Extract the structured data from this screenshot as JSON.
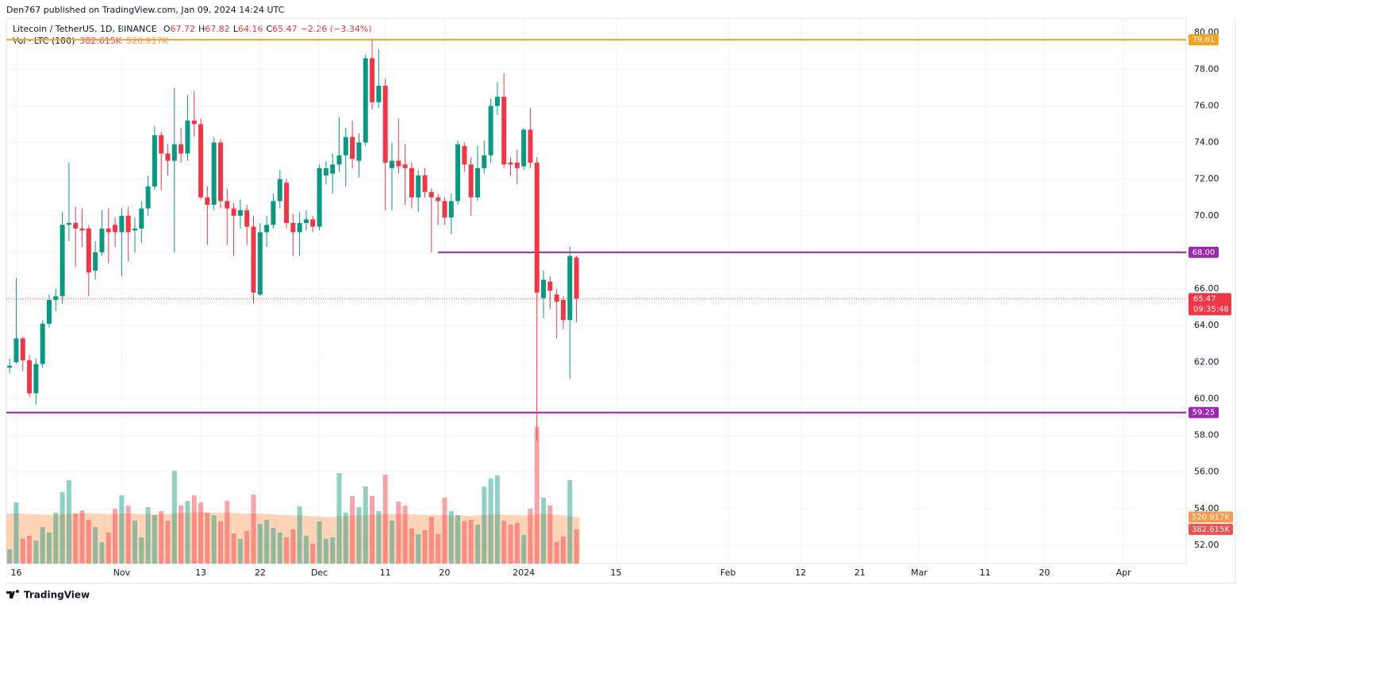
{
  "header": {
    "publisher": "Den767 published on TradingView.com, Jan 09, 2024 14:24 UTC"
  },
  "chart_data": {
    "type": "candlestick",
    "title": "Litecoin / TetherUS, 1D, BINANCE",
    "legend": {
      "o_label": "O",
      "open": 67.72,
      "h_label": "H",
      "high": 67.82,
      "l_label": "L",
      "low": 64.16,
      "c_label": "C",
      "close": 65.47,
      "change": "−2.26 (−3.34%)"
    },
    "x": [
      -1,
      0,
      1,
      2,
      3,
      4,
      5,
      6,
      7,
      8,
      9,
      10,
      11,
      12,
      13,
      14,
      15,
      16,
      17,
      18,
      19,
      20,
      21,
      22,
      23,
      24,
      25,
      26,
      27,
      28,
      29,
      30,
      31,
      32,
      33,
      34,
      35,
      36,
      37,
      38,
      39,
      40,
      41,
      42,
      43,
      44,
      45,
      46,
      47,
      48,
      49,
      50,
      51,
      52,
      53,
      54,
      55,
      56,
      57,
      58,
      59,
      60,
      61,
      62,
      63,
      64,
      65,
      66,
      67,
      68,
      69,
      70,
      71,
      72,
      73,
      74,
      75,
      76,
      77,
      78,
      79,
      80,
      81,
      82,
      83,
      84,
      85
    ],
    "open": [
      61.7,
      62.0,
      63.3,
      62.1,
      60.3,
      61.9,
      64.1,
      65.4,
      65.6,
      69.5,
      69.6,
      69.3,
      69.3,
      67.0,
      68.0,
      69.3,
      69.5,
      69.1,
      70.0,
      69.2,
      69.3,
      70.4,
      71.6,
      74.4,
      73.4,
      73.0,
      73.9,
      73.4,
      75.2,
      75.0,
      71.0,
      70.6,
      74.0,
      70.8,
      70.4,
      70.0,
      70.3,
      69.4,
      65.7,
      69.1,
      69.5,
      70.8,
      71.8,
      69.6,
      69.1,
      69.6,
      69.8,
      69.4,
      72.2,
      72.3,
      72.8,
      73.3,
      74.3,
      73.0,
      74.0,
      78.6,
      76.2,
      77.1,
      72.6,
      73.0,
      72.8,
      72.6,
      71.0,
      72.2,
      71.3,
      71.0,
      70.8,
      69.9,
      70.8,
      73.8,
      72.8,
      71.0,
      72.6,
      73.3,
      76.0,
      76.5,
      72.9,
      72.9,
      72.7,
      74.7,
      72.9,
      65.5,
      66.4,
      65.7,
      65.4,
      64.3,
      67.72
    ],
    "high": [
      62.2,
      66.6,
      63.4,
      62.4,
      62.2,
      64.3,
      65.7,
      66.0,
      70.2,
      72.9,
      70.5,
      70.4,
      69.5,
      68.6,
      70.3,
      70.4,
      69.9,
      70.4,
      70.5,
      69.9,
      70.8,
      72.2,
      74.9,
      74.6,
      73.9,
      77.0,
      74.8,
      76.6,
      76.8,
      75.3,
      71.6,
      74.3,
      74.2,
      71.5,
      70.7,
      70.9,
      70.6,
      70.0,
      69.6,
      70.0,
      71.2,
      72.5,
      72.0,
      70.1,
      70.2,
      70.3,
      70.0,
      72.8,
      73.0,
      73.4,
      75.4,
      74.8,
      75.2,
      74.5,
      78.8,
      79.6,
      79.1,
      77.5,
      74.0,
      75.3,
      73.9,
      72.9,
      72.5,
      72.6,
      71.5,
      71.2,
      71.0,
      71.2,
      74.1,
      74.0,
      73.2,
      73.8,
      74.1,
      76.4,
      77.3,
      77.8,
      73.2,
      73.6,
      74.8,
      75.9,
      73.2,
      67.0,
      66.7,
      66.0,
      65.6,
      68.3,
      67.82
    ],
    "low": [
      61.4,
      61.9,
      61.5,
      60.1,
      59.7,
      61.7,
      63.9,
      64.8,
      65.2,
      68.6,
      67.2,
      68.3,
      65.6,
      66.5,
      67.8,
      67.4,
      68.3,
      66.7,
      67.5,
      68.0,
      68.5,
      70.0,
      71.4,
      71.4,
      72.2,
      68.0,
      72.9,
      73.0,
      74.3,
      70.9,
      68.4,
      70.3,
      70.4,
      68.4,
      67.8,
      69.3,
      68.4,
      65.2,
      65.6,
      68.3,
      69.3,
      70.4,
      69.3,
      67.8,
      67.8,
      69.2,
      69.1,
      69.2,
      71.7,
      71.2,
      72.4,
      71.6,
      72.6,
      72.1,
      73.8,
      75.8,
      75.9,
      70.3,
      70.3,
      72.3,
      70.6,
      70.4,
      70.2,
      71.0,
      68.0,
      69.5,
      69.5,
      69.0,
      70.6,
      72.4,
      70.0,
      70.8,
      72.3,
      72.9,
      75.5,
      72.6,
      72.2,
      71.7,
      72.5,
      72.6,
      57.7,
      64.4,
      64.9,
      63.3,
      63.8,
      61.1,
      64.16
    ],
    "close": [
      61.8,
      63.3,
      62.1,
      60.3,
      61.9,
      64.1,
      65.4,
      65.6,
      69.5,
      69.6,
      69.3,
      69.2,
      66.9,
      68.0,
      69.3,
      69.1,
      69.1,
      70.0,
      69.1,
      69.3,
      70.4,
      71.6,
      74.4,
      73.4,
      73.0,
      73.9,
      73.4,
      75.2,
      75.0,
      71.0,
      70.6,
      74.0,
      70.8,
      70.4,
      70.0,
      70.3,
      69.4,
      65.8,
      69.1,
      69.5,
      70.8,
      72.0,
      69.6,
      69.1,
      69.6,
      69.8,
      69.4,
      72.6,
      72.6,
      72.8,
      73.3,
      74.3,
      73.1,
      74.0,
      78.6,
      76.2,
      77.1,
      72.9,
      73.0,
      72.7,
      72.6,
      71.0,
      72.2,
      71.3,
      71.0,
      70.8,
      69.9,
      70.8,
      73.9,
      72.8,
      71.0,
      72.6,
      73.3,
      76.0,
      76.5,
      72.8,
      72.8,
      72.6,
      74.7,
      72.9,
      65.8,
      66.5,
      65.9,
      65.3,
      64.3,
      67.8,
      65.47
    ],
    "up_color": "#089981",
    "down_color": "#f23645",
    "xlim": [
      -1.5,
      177.5
    ],
    "xticks": [
      {
        "value": 0,
        "label": "16"
      },
      {
        "value": 16,
        "label": "Nov"
      },
      {
        "value": 28,
        "label": "13"
      },
      {
        "value": 37,
        "label": "22"
      },
      {
        "value": 46,
        "label": "Dec"
      },
      {
        "value": 56,
        "label": "11"
      },
      {
        "value": 65,
        "label": "20"
      },
      {
        "value": 77,
        "label": "2024"
      },
      {
        "value": 91,
        "label": "15"
      },
      {
        "value": 108,
        "label": "Feb"
      },
      {
        "value": 119,
        "label": "12"
      },
      {
        "value": 128,
        "label": "21"
      },
      {
        "value": 137,
        "label": "Mar"
      },
      {
        "value": 147,
        "label": "11"
      },
      {
        "value": 156,
        "label": "20"
      },
      {
        "value": 168,
        "label": "Apr"
      }
    ],
    "ylim": [
      51.0,
      80.7
    ],
    "yticks": [
      {
        "value": 52,
        "label": "52.00"
      },
      {
        "value": 54,
        "label": "54.00"
      },
      {
        "value": 56,
        "label": "56.00"
      },
      {
        "value": 58,
        "label": "58.00"
      },
      {
        "value": 60,
        "label": "60.00"
      },
      {
        "value": 62,
        "label": "62.00"
      },
      {
        "value": 64,
        "label": "64.00"
      },
      {
        "value": 66,
        "label": "66.00"
      },
      {
        "value": 68,
        "label": "68.00"
      },
      {
        "value": 70,
        "label": "70.00"
      },
      {
        "value": 72,
        "label": "72.00"
      },
      {
        "value": 74,
        "label": "74.00"
      },
      {
        "value": 76,
        "label": "76.00"
      },
      {
        "value": 78,
        "label": "78.00"
      },
      {
        "value": 80,
        "label": "80.00"
      }
    ],
    "grid": true,
    "price_lines": [
      {
        "value": 79.61,
        "color": "#f7a21b"
      },
      {
        "value": 68,
        "label": "68.00",
        "color": "#9c27b0",
        "start_x": 64
      },
      {
        "value": 59.25,
        "color": "#9c27b0"
      }
    ],
    "last_price": {
      "value": 65.47,
      "countdown": "09:35:48"
    },
    "volume": {
      "title": "Vol · LTC (100)",
      "values": [
        160,
        685,
        276,
        311,
        258,
        409,
        347,
        570,
        800,
        935,
        560,
        596,
        490,
        409,
        240,
        347,
        614,
        765,
        650,
        480,
        294,
        632,
        543,
        587,
        480,
        1041,
        650,
        703,
        765,
        685,
        570,
        543,
        472,
        703,
        338,
        276,
        365,
        774,
        445,
        490,
        400,
        347,
        294,
        383,
        641,
        311,
        223,
        472,
        276,
        294,
        1015,
        570,
        757,
        632,
        863,
        757,
        587,
        997,
        480,
        694,
        650,
        392,
        329,
        374,
        525,
        329,
        739,
        587,
        543,
        472,
        490,
        436,
        863,
        952,
        988,
        480,
        436,
        454,
        320,
        614,
        1531,
        739,
        650,
        240,
        303,
        935,
        382.615
      ],
      "ma": [
        560,
        565,
        560,
        555,
        552,
        550,
        548,
        548,
        552,
        560,
        562,
        565,
        565,
        562,
        558,
        556,
        558,
        560,
        562,
        560,
        556,
        556,
        555,
        556,
        555,
        565,
        566,
        568,
        572,
        575,
        572,
        570,
        568,
        570,
        566,
        562,
        560,
        562,
        560,
        556,
        552,
        548,
        544,
        540,
        540,
        536,
        530,
        528,
        525,
        522,
        530,
        532,
        536,
        540,
        545,
        548,
        548,
        555,
        552,
        555,
        556,
        552,
        548,
        546,
        544,
        545,
        543,
        540,
        540,
        538,
        535,
        540,
        545,
        550,
        552,
        548,
        545,
        542,
        540,
        540,
        552,
        555,
        552,
        548,
        540,
        532,
        520.917
      ],
      "last_label": "382.615K",
      "ma_last_label": "520.917K",
      "ylim": [
        0,
        6100
      ],
      "up_color": "rgba(8,153,129,0.45)",
      "down_color": "rgba(242,54,69,0.45)",
      "ma_color": "rgba(255,152,80,0.42)",
      "ma_label_color": "#f89a4c"
    }
  },
  "footer": {
    "brand": "TradingView"
  }
}
